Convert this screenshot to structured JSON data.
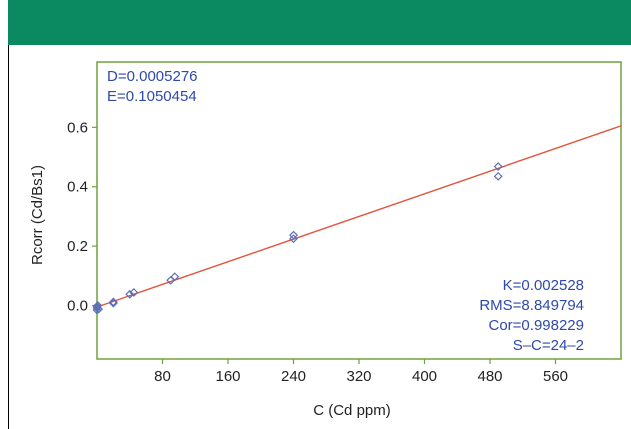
{
  "colors": {
    "header": "#0b8a61",
    "frame": "#6fa23c",
    "fit_line": "#e0553b",
    "points": "#5a6fb8",
    "stat_text": "#2f49a8"
  },
  "stats_top": [
    "D=0.0005276",
    "E=0.1050454"
  ],
  "stats_bottom": [
    "K=0.002528",
    "RMS=8.849794",
    "Cor=0.998229",
    "S–C=24–2"
  ],
  "chart_data": {
    "type": "scatter",
    "xlabel": "C (Cd ppm)",
    "ylabel": "Rcorr (Cd/Bs1)",
    "xlim": [
      0,
      640
    ],
    "ylim": [
      -0.18,
      0.82
    ],
    "xticks": [
      80,
      160,
      240,
      320,
      400,
      480,
      560
    ],
    "xtick_labels": [
      "80",
      "160",
      "240",
      "320",
      "400",
      "480",
      "560"
    ],
    "yticks": [
      0.0,
      0.2,
      0.4,
      0.6
    ],
    "ytick_labels": [
      "0.0",
      "0.2",
      "0.4",
      "0.6"
    ],
    "grid": false,
    "points": [
      {
        "x": 0,
        "y": -0.015
      },
      {
        "x": 0,
        "y": -0.008
      },
      {
        "x": 0,
        "y": -0.003
      },
      {
        "x": 1,
        "y": 0.0
      },
      {
        "x": 2,
        "y": -0.012
      },
      {
        "x": 20,
        "y": 0.008
      },
      {
        "x": 20,
        "y": 0.012
      },
      {
        "x": 40,
        "y": 0.038
      },
      {
        "x": 45,
        "y": 0.044
      },
      {
        "x": 90,
        "y": 0.085
      },
      {
        "x": 95,
        "y": 0.097
      },
      {
        "x": 240,
        "y": 0.225
      },
      {
        "x": 240,
        "y": 0.237
      },
      {
        "x": 490,
        "y": 0.435
      },
      {
        "x": 490,
        "y": 0.468
      }
    ],
    "fit_line": {
      "x": [
        0,
        640
      ],
      "y": [
        -0.005,
        0.605
      ]
    }
  }
}
